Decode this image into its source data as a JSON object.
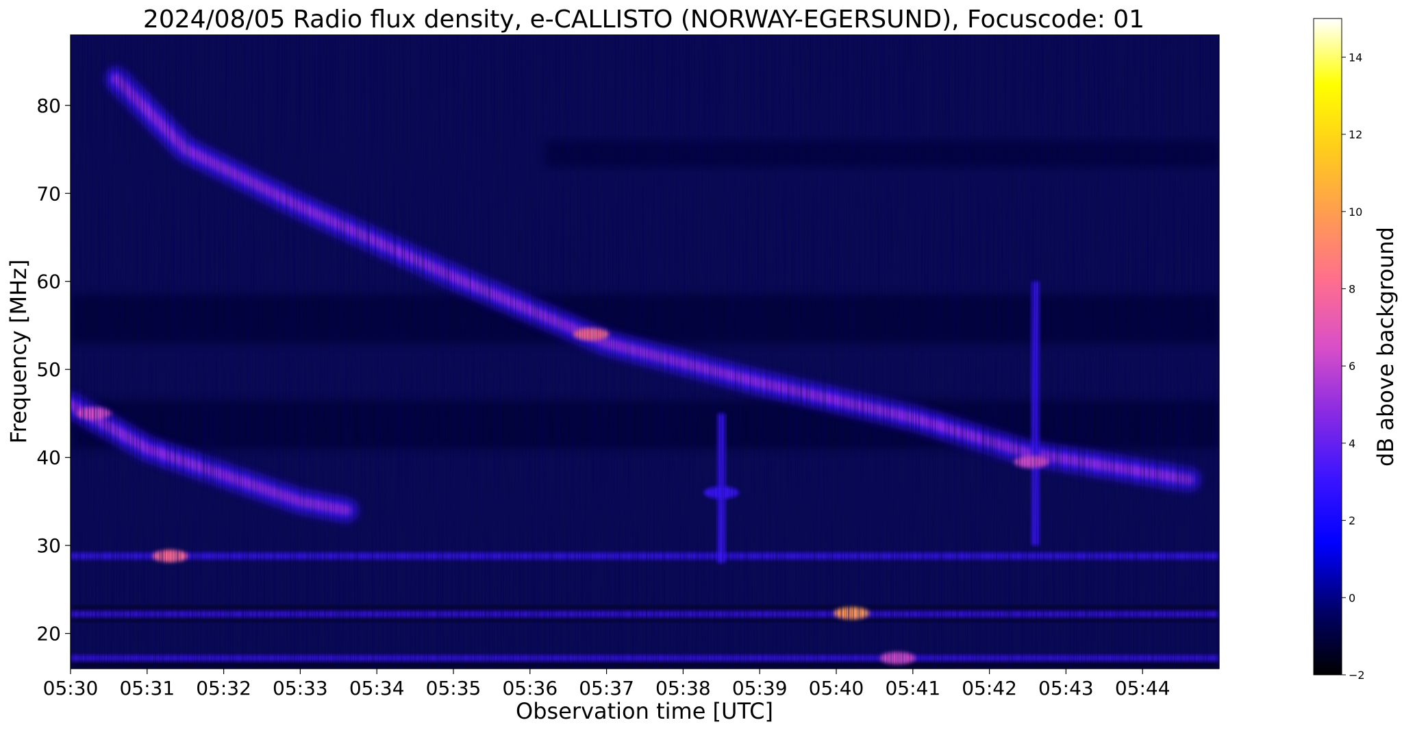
{
  "chart_data": {
    "type": "heatmap",
    "title": "2024/08/05  Radio flux density, e-CALLISTO (NORWAY-EGERSUND), Focuscode: 01",
    "xlabel": "Observation time [UTC]",
    "ylabel": "Frequency [MHz]",
    "x_ticks": [
      "05:30",
      "05:31",
      "05:32",
      "05:33",
      "05:34",
      "05:35",
      "05:36",
      "05:37",
      "05:38",
      "05:39",
      "05:40",
      "05:41",
      "05:42",
      "05:43",
      "05:44"
    ],
    "x_range_minutes": [
      0,
      15
    ],
    "y_ticks": [
      20,
      30,
      40,
      50,
      60,
      70,
      80
    ],
    "y_range_mhz": [
      16,
      88
    ],
    "colorbar": {
      "label": "dB above background",
      "range": [
        -2,
        15
      ],
      "ticks": [
        -2,
        0,
        2,
        4,
        6,
        8,
        10,
        12,
        14
      ],
      "colormap": "gnuplot2",
      "stops": [
        "#000000",
        "#00006b",
        "#0000ff",
        "#3c14ff",
        "#8a2be2",
        "#d94fc8",
        "#ff6e8e",
        "#ff9b52",
        "#ffcc1c",
        "#ffff00",
        "#ffffff"
      ]
    },
    "background_color": "#0a0a52",
    "features": [
      {
        "kind": "type II drifting band",
        "points": [
          [
            0.6,
            83
          ],
          [
            1.5,
            75
          ],
          [
            3,
            68.5
          ],
          [
            5,
            60.5
          ],
          [
            7,
            53
          ],
          [
            9,
            48.5
          ],
          [
            11,
            44.5
          ],
          [
            12.5,
            40.5
          ],
          [
            14.6,
            37.5
          ]
        ],
        "peak_db": 7,
        "peak_at": [
          6.8,
          54
        ]
      },
      {
        "kind": "lower harmonic band",
        "points": [
          [
            0,
            46
          ],
          [
            1,
            41
          ],
          [
            2,
            38
          ],
          [
            3,
            35
          ],
          [
            3.6,
            34
          ]
        ],
        "peak_db": 6,
        "peak_at": [
          0.3,
          45
        ]
      },
      {
        "kind": "interference line",
        "mhz": 28.8,
        "peak_db": 7,
        "peak_at": [
          1.3,
          28.8
        ]
      },
      {
        "kind": "interference line",
        "mhz": 22.2,
        "peak_db": 9,
        "peak_at": [
          10.2,
          22.3
        ]
      },
      {
        "kind": "interference line",
        "mhz": 17.2,
        "peak_db": 6,
        "peak_at": [
          10.8,
          17.2
        ]
      },
      {
        "kind": "vertical burst",
        "minute": 12.6,
        "mhz_range": [
          30,
          60
        ],
        "peak_db": 6,
        "peak_at": [
          12.55,
          39.5
        ]
      },
      {
        "kind": "vertical burst",
        "minute": 8.5,
        "mhz_range": [
          28,
          45
        ],
        "peak_db": 3,
        "peak_at": [
          8.5,
          36
        ]
      }
    ]
  }
}
